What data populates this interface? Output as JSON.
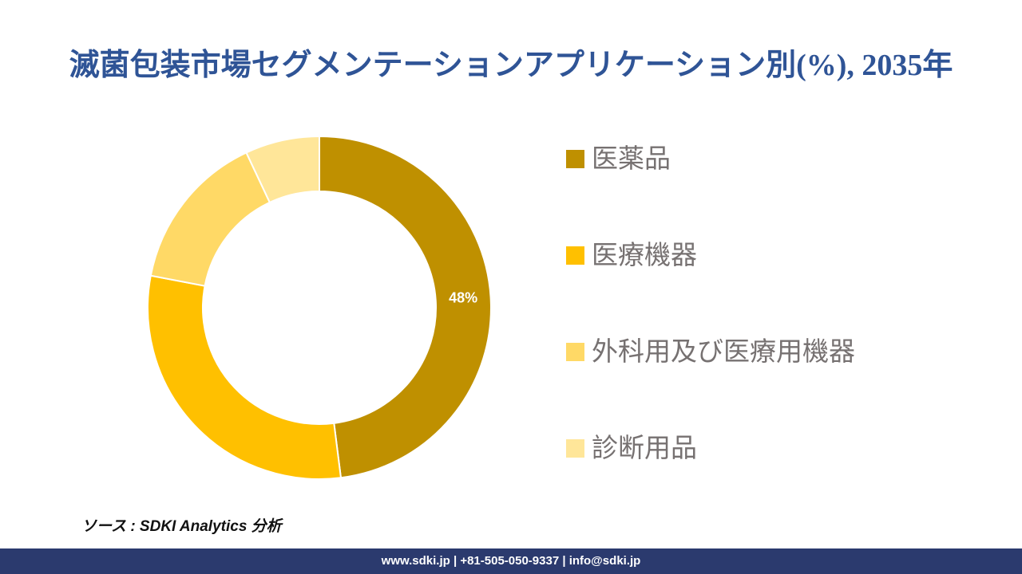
{
  "title": {
    "text": "滅菌包装市場セグメンテーションアプリケーション別(%), 2035年",
    "color": "#2F5496"
  },
  "chart_data": {
    "type": "pie",
    "subtype": "donut",
    "title": "滅菌包装市場セグメンテーションアプリケーション別(%), 2035年",
    "hole_ratio": 0.68,
    "start_angle_deg": 0,
    "direction": "clockwise",
    "legend_position": "right",
    "data_label_color": "#ffffff",
    "segment_border_color": "#ffffff",
    "segments": [
      {
        "label": "医薬品",
        "value": 48,
        "color": "#BF9000",
        "data_label": "48%",
        "show_label": true
      },
      {
        "label": "医療機器",
        "value": 30,
        "color": "#FFC000",
        "data_label": "",
        "show_label": false
      },
      {
        "label": "外科用及び医療用機器",
        "value": 15,
        "color": "#FFD966",
        "data_label": "",
        "show_label": false
      },
      {
        "label": "診断用品",
        "value": 7,
        "color": "#FFE699",
        "data_label": "",
        "show_label": false
      }
    ]
  },
  "legend": {
    "text_color": "#767171"
  },
  "source": {
    "text": "ソース : SDKI Analytics 分析"
  },
  "footer": {
    "text": "www.sdki.jp | +81-505-050-9337 | info@sdki.jp",
    "bg": "#2B3A6E",
    "text_color": "#ffffff"
  }
}
